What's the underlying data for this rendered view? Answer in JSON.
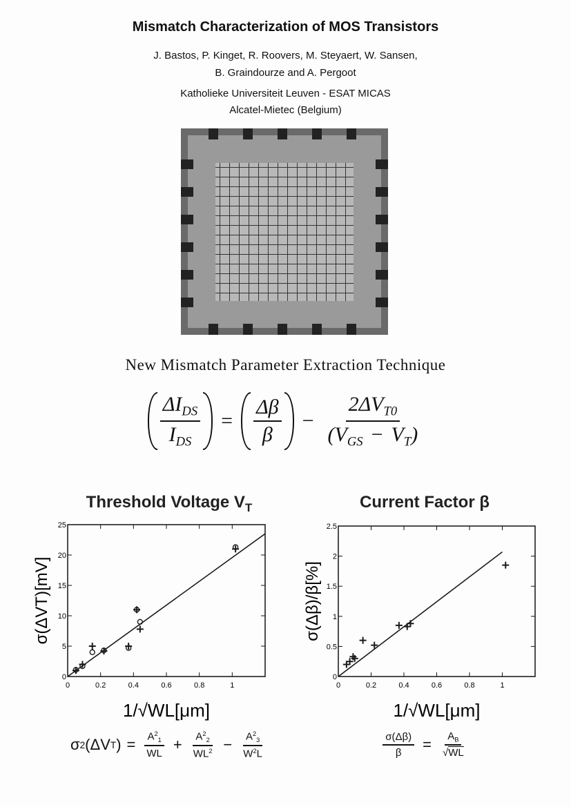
{
  "header": {
    "title": "Mismatch Characterization of MOS Transistors",
    "authors": [
      "J. Bastos, P. Kinget, R. Roovers, M. Steyaert, W. Sansen,",
      "B. Graindourze and A. Pergoot"
    ],
    "affiliations": [
      "Katholieke Universiteit Leuven - ESAT MICAS",
      "Alcatel-Mietec (Belgium)"
    ]
  },
  "section_title": "New Mismatch Parameter Extraction Technique",
  "equation": [
    {
      "group": [
        {
          "num": [
            {
              "text": "ΔI"
            },
            {
              "sub": "DS"
            }
          ],
          "den": [
            {
              "text": "I"
            },
            {
              "sub": "DS"
            }
          ]
        }
      ]
    },
    {
      "op": "="
    },
    {
      "group": [
        {
          "num": [
            {
              "text": "Δβ"
            }
          ],
          "den": [
            {
              "text": "β"
            }
          ]
        }
      ]
    },
    {
      "op": "−"
    },
    {
      "num": [
        {
          "text": "2ΔV"
        },
        {
          "sub": "T0"
        }
      ],
      "den": [
        {
          "text": "(V"
        },
        {
          "sub": "GS"
        },
        {
          "op": "−"
        },
        {
          "text": "V"
        },
        {
          "sub": "T"
        },
        {
          "text": ")"
        }
      ]
    }
  ],
  "chart_data": [
    {
      "type": "scatter",
      "title": "Threshold Voltage V",
      "title_subscript": "T",
      "y_label": "σ(ΔVT)[mV]",
      "x_label": "1/√WL[μm]",
      "xlim": [
        0,
        1.2
      ],
      "xticks": [
        0,
        0.2,
        0.4,
        0.6,
        0.8,
        1
      ],
      "ylim": [
        0,
        25
      ],
      "yticks": [
        0,
        5,
        10,
        15,
        20,
        25
      ],
      "grid": false,
      "series": [
        {
          "marker": "plus",
          "color": "#1a1a1a",
          "x": [
            0.05,
            0.09,
            0.15,
            0.22,
            0.37,
            0.42,
            0.44,
            1.02
          ],
          "values": [
            1,
            2,
            5,
            4.2,
            5,
            11,
            7.8,
            21
          ]
        },
        {
          "marker": "circle",
          "color": "#1a1a1a",
          "x": [
            0.05,
            0.09,
            0.15,
            0.22,
            0.37,
            0.42,
            0.44,
            1.02
          ],
          "values": [
            1.1,
            1.7,
            4,
            4.3,
            4.7,
            11,
            9,
            21.3
          ]
        }
      ],
      "fit_line": {
        "color": "#1a1a1a",
        "x": [
          0,
          1.2
        ],
        "values": [
          0,
          23.5
        ]
      },
      "formula": [
        {
          "text": "σ"
        },
        {
          "sup": "2"
        },
        {
          "text": "(ΔV"
        },
        {
          "sub": "T"
        },
        {
          "text": ")"
        },
        {
          "op": "="
        },
        {
          "num": [
            {
              "text": "A"
            },
            {
              "sup": "2"
            },
            {
              "sub": "1"
            }
          ],
          "den": [
            {
              "text": "WL"
            }
          ]
        },
        {
          "op": "+"
        },
        {
          "num": [
            {
              "text": "A"
            },
            {
              "sup": "2"
            },
            {
              "sub": "2"
            }
          ],
          "den": [
            {
              "text": "WL"
            },
            {
              "sup": "2"
            }
          ]
        },
        {
          "op": "−"
        },
        {
          "num": [
            {
              "text": "A"
            },
            {
              "sup": "2"
            },
            {
              "sub": "3"
            }
          ],
          "den": [
            {
              "text": "W"
            },
            {
              "sup": "2"
            },
            {
              "text": "L"
            }
          ]
        }
      ]
    },
    {
      "type": "scatter",
      "title": "Current Factor β",
      "y_label": "σ(Δβ)/β[%]",
      "x_label": "1/√WL[μm]",
      "xlim": [
        0,
        1.2
      ],
      "xticks": [
        0,
        0.2,
        0.4,
        0.6,
        0.8,
        1
      ],
      "ylim": [
        0,
        2.5
      ],
      "yticks": [
        0,
        0.5,
        1,
        1.5,
        2,
        2.5
      ],
      "grid": false,
      "series": [
        {
          "marker": "plus",
          "color": "#1a1a1a",
          "x": [
            0.05,
            0.07,
            0.09,
            0.1,
            0.15,
            0.22,
            0.37,
            0.42,
            0.44,
            1.02
          ],
          "values": [
            0.2,
            0.25,
            0.33,
            0.3,
            0.6,
            0.52,
            0.85,
            0.83,
            0.88,
            1.85
          ]
        }
      ],
      "fit_line": {
        "color": "#1a1a1a",
        "x": [
          0,
          1
        ],
        "values": [
          0,
          2.07
        ]
      },
      "formula": [
        {
          "num": [
            {
              "text": "σ(Δβ)"
            }
          ],
          "den": [
            {
              "text": "β"
            }
          ]
        },
        {
          "op": "="
        },
        {
          "num": [
            {
              "text": "A"
            },
            {
              "sub": "B"
            }
          ],
          "den": [
            {
              "text": "√"
            },
            {
              "over": "WL"
            }
          ]
        }
      ]
    }
  ]
}
